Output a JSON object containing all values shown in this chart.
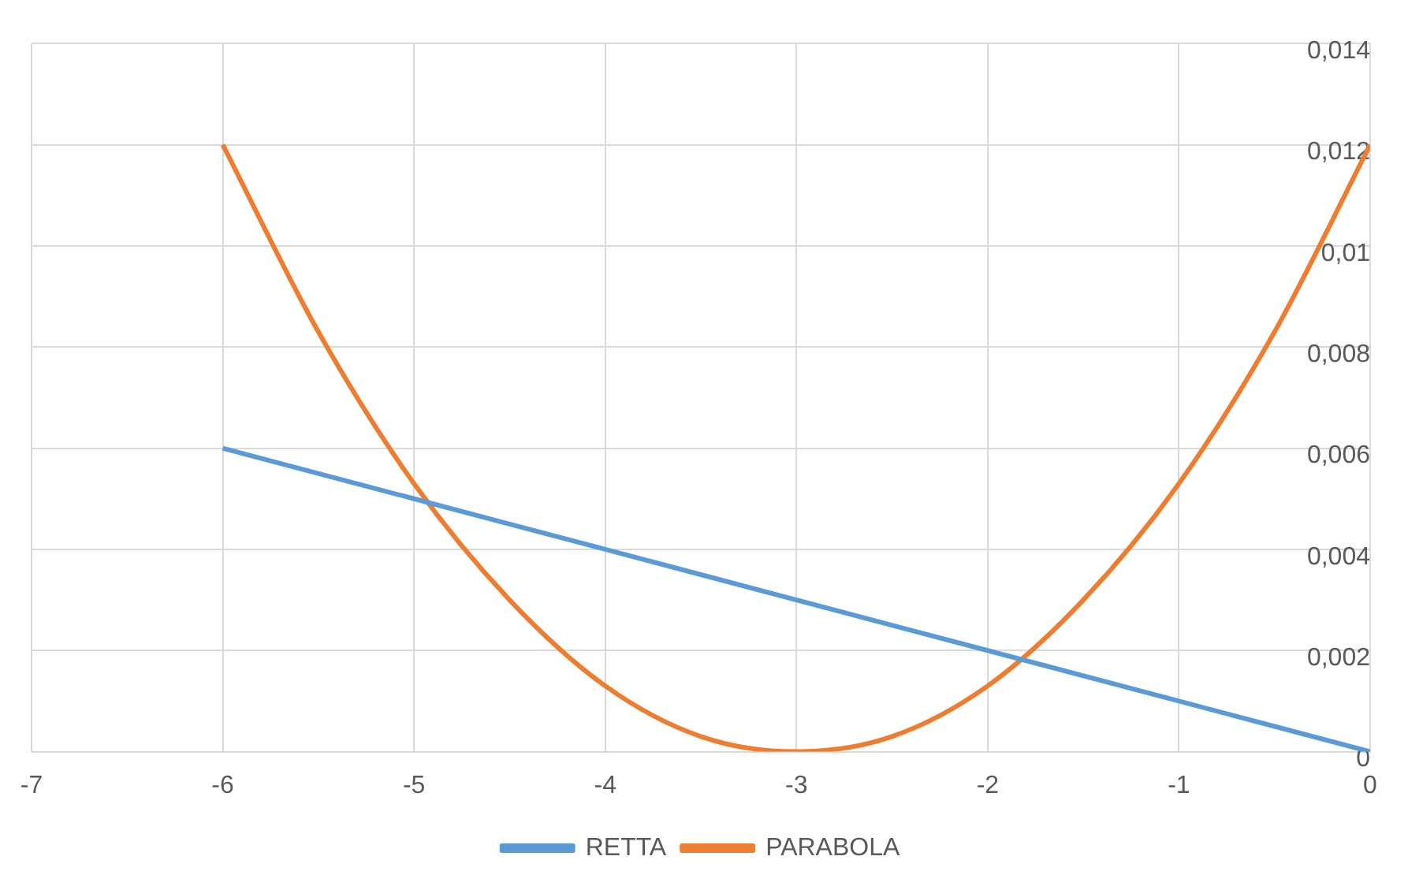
{
  "chart_data": {
    "type": "line",
    "xlim": [
      -7,
      0
    ],
    "xticks": [
      -7,
      -6,
      -5,
      -4,
      -3,
      -2,
      -1,
      0
    ],
    "ylim": [
      0,
      0.014
    ],
    "yticks": [
      {
        "value": 0,
        "label": "0"
      },
      {
        "value": 0.002,
        "label": "0,002"
      },
      {
        "value": 0.004,
        "label": "0,004"
      },
      {
        "value": 0.006,
        "label": "0,006"
      },
      {
        "value": 0.008,
        "label": "0,008"
      },
      {
        "value": 0.01,
        "label": "0,01"
      },
      {
        "value": 0.012,
        "label": "0,012"
      },
      {
        "value": 0.014,
        "label": "0,014"
      }
    ],
    "grid": true,
    "legend": "bottom",
    "marker": "none",
    "line_style": "solid",
    "series": [
      {
        "name": "RETTA",
        "color": "#5b9bd5",
        "x": [
          -6,
          -5,
          -4,
          -3,
          -2,
          -1,
          0
        ],
        "values": [
          0.006,
          0.005,
          0.004,
          0.003,
          0.002,
          0.001,
          0
        ]
      },
      {
        "name": "PARABOLA",
        "color": "#ed7d31",
        "x": [
          -6,
          -5.5,
          -5,
          -4.5,
          -4,
          -3.5,
          -3,
          -2.5,
          -2,
          -1.5,
          -1,
          -0.5,
          0
        ],
        "values": [
          0.012,
          0.0083,
          0.0053,
          0.003,
          0.0013,
          0.0003,
          0,
          0.0003,
          0.0013,
          0.003,
          0.0053,
          0.0083,
          0.012
        ]
      }
    ]
  }
}
